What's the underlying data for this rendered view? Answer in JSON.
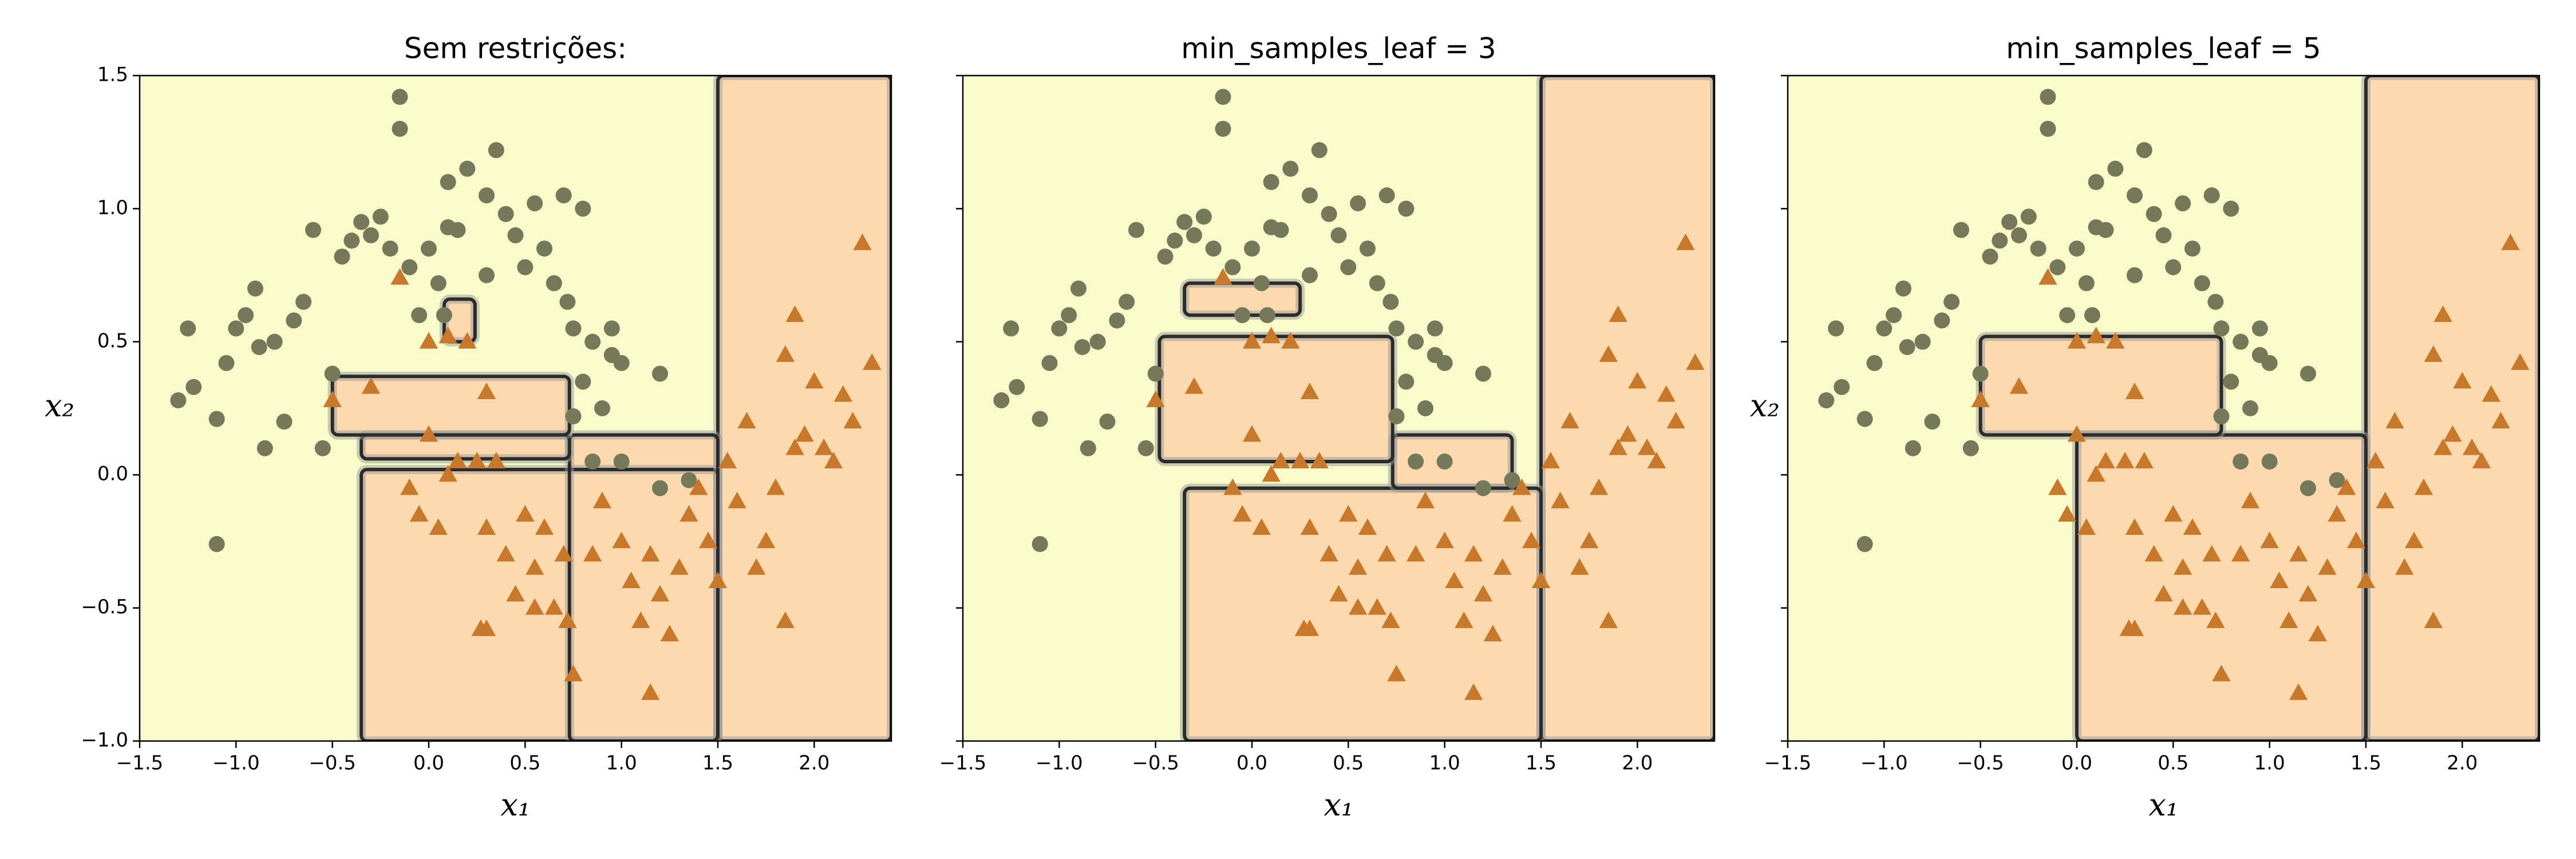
{
  "chart_data": [
    {
      "type": "scatter",
      "title": "Sem restrições:",
      "xlabel": "x₁",
      "ylabel": "x₂",
      "xlim": [
        -1.5,
        2.4
      ],
      "ylim": [
        -1,
        1.5
      ],
      "xticks": [
        {
          "value": -1.5,
          "label": "−1.5"
        },
        {
          "value": -1,
          "label": "−1.0"
        },
        {
          "value": -0.5,
          "label": "−0.5"
        },
        {
          "value": 0,
          "label": "0.0"
        },
        0.5,
        {
          "value": 1,
          "label": "1.0"
        },
        1.5,
        {
          "value": 2,
          "label": "2.0"
        }
      ],
      "yticks": [
        {
          "value": -1,
          "label": "−1.0"
        },
        {
          "value": -0.5,
          "label": "−0.5"
        },
        {
          "value": 0,
          "label": "0.0"
        },
        0.5,
        {
          "value": 1,
          "label": "1.0"
        },
        1.5
      ],
      "show_ytick_labels": true,
      "background_color": "#f9fbcb",
      "region_color": "#fcd9ae",
      "regions": [
        [
          1.5,
          2.4,
          -1,
          1.5
        ],
        [
          -0.35,
          1.5,
          -1,
          0.02
        ],
        [
          0.73,
          1.5,
          -1,
          0.15
        ],
        [
          -0.35,
          0.73,
          0.06,
          0.15
        ],
        [
          -0.5,
          0.73,
          0.15,
          0.37
        ],
        [
          0.08,
          0.24,
          0.5,
          0.66
        ]
      ],
      "series": [
        {
          "marker": "circle",
          "color": "#76785a",
          "x": [
            -1.3,
            -1.25,
            -1.22,
            -1.1,
            -1.1,
            -1.05,
            -1,
            -0.95,
            -0.9,
            -0.88,
            -0.85,
            -0.8,
            -0.75,
            -0.7,
            -0.65,
            -0.6,
            -0.55,
            -0.5,
            -0.45,
            -0.4,
            -0.35,
            -0.3,
            -0.25,
            -0.2,
            -0.15,
            -0.15,
            -0.1,
            -0.05,
            0,
            0.05,
            0.1,
            0.15,
            0.08,
            0.1,
            0.2,
            0.3,
            0.3,
            0.35,
            0.4,
            0.45,
            0.5,
            0.55,
            0.6,
            0.65,
            0.7,
            0.72,
            0.75,
            0.8,
            0.8,
            0.9,
            0.95,
            1,
            0.85,
            1,
            1.2,
            1.35,
            0.75,
            0.85,
            0.95,
            1.2
          ],
          "values": [
            0.28,
            0.55,
            0.33,
            0.21,
            -0.26,
            0.42,
            0.55,
            0.6,
            0.7,
            0.48,
            0.1,
            0.5,
            0.2,
            0.58,
            0.65,
            0.92,
            0.1,
            0.38,
            0.82,
            0.88,
            0.95,
            0.9,
            0.97,
            0.85,
            1.3,
            1.42,
            0.78,
            0.6,
            0.85,
            0.72,
            0.93,
            0.92,
            0.6,
            1.1,
            1.15,
            1.05,
            0.75,
            1.22,
            0.98,
            0.9,
            0.78,
            1.02,
            0.85,
            0.72,
            1.05,
            0.65,
            0.55,
            1,
            0.35,
            0.25,
            0.45,
            0.42,
            0.05,
            0.05,
            -0.05,
            -0.02,
            0.22,
            0.5,
            0.55,
            0.38
          ]
        },
        {
          "marker": "triangle",
          "color": "#c8782a",
          "x": [
            -0.15,
            0,
            0.1,
            0.2,
            0.3,
            -0.5,
            -0.3,
            0,
            0.15,
            -0.1,
            0.1,
            0.25,
            0.35,
            0.3,
            0.4,
            0.45,
            0.5,
            0.55,
            0.6,
            0.65,
            0.7,
            0.72,
            0.75,
            0.85,
            0.9,
            1,
            1.05,
            1.1,
            1.15,
            1.2,
            1.25,
            1.15,
            1.3,
            1.35,
            1.4,
            1.45,
            1.5,
            1.55,
            1.6,
            1.65,
            1.7,
            1.75,
            1.8,
            1.85,
            1.9,
            1.95,
            2,
            2.05,
            1.85,
            1.9,
            2.1,
            2.2,
            2.25,
            2.3,
            2.15,
            0.3,
            0.27,
            0.05,
            -0.05,
            0.55
          ],
          "values": [
            0.74,
            0.5,
            0.52,
            0.5,
            0.31,
            0.28,
            0.33,
            0.15,
            0.05,
            -0.05,
            0,
            0.05,
            0.05,
            -0.2,
            -0.3,
            -0.45,
            -0.15,
            -0.35,
            -0.2,
            -0.5,
            -0.3,
            -0.55,
            -0.75,
            -0.3,
            -0.1,
            -0.25,
            -0.4,
            -0.55,
            -0.3,
            -0.45,
            -0.6,
            -0.82,
            -0.35,
            -0.15,
            -0.05,
            -0.25,
            -0.4,
            0.05,
            -0.1,
            0.2,
            -0.35,
            -0.25,
            -0.05,
            -0.55,
            0.1,
            0.15,
            0.35,
            0.1,
            0.45,
            0.6,
            0.05,
            0.2,
            0.87,
            0.42,
            0.3,
            -0.58,
            -0.58,
            -0.2,
            -0.15,
            -0.5
          ]
        }
      ]
    },
    {
      "type": "scatter",
      "title": "min_samples_leaf = 3",
      "xlabel": "x₁",
      "xlim": [
        -1.5,
        2.4
      ],
      "ylim": [
        -1,
        1.5
      ],
      "xticks": [
        {
          "value": -1.5,
          "label": "−1.5"
        },
        {
          "value": -1,
          "label": "−1.0"
        },
        {
          "value": -0.5,
          "label": "−0.5"
        },
        {
          "value": 0,
          "label": "0.0"
        },
        0.5,
        {
          "value": 1,
          "label": "1.0"
        },
        1.5,
        {
          "value": 2,
          "label": "2.0"
        }
      ],
      "yticks": [
        -1,
        -0.5,
        0,
        0.5,
        1,
        1.5
      ],
      "show_ytick_labels": false,
      "background_color": "#f9fbcb",
      "region_color": "#fcd9ae",
      "regions": [
        [
          1.5,
          2.4,
          -1,
          1.5
        ],
        [
          -0.35,
          1.5,
          -1,
          -0.05
        ],
        [
          0.73,
          1.35,
          -0.05,
          0.15
        ],
        [
          -0.48,
          0.73,
          0.05,
          0.52
        ],
        [
          -0.35,
          0.25,
          0.6,
          0.72
        ]
      ],
      "series": [
        {
          "marker": "circle",
          "color": "#76785a",
          "x": [
            -1.3,
            -1.25,
            -1.22,
            -1.1,
            -1.1,
            -1.05,
            -1,
            -0.95,
            -0.9,
            -0.88,
            -0.85,
            -0.8,
            -0.75,
            -0.7,
            -0.65,
            -0.6,
            -0.55,
            -0.5,
            -0.45,
            -0.4,
            -0.35,
            -0.3,
            -0.25,
            -0.2,
            -0.15,
            -0.15,
            -0.1,
            -0.05,
            0,
            0.05,
            0.1,
            0.15,
            0.08,
            0.1,
            0.2,
            0.3,
            0.3,
            0.35,
            0.4,
            0.45,
            0.5,
            0.55,
            0.6,
            0.65,
            0.7,
            0.72,
            0.75,
            0.8,
            0.8,
            0.9,
            0.95,
            1,
            0.85,
            1,
            1.2,
            1.35,
            0.75,
            0.85,
            0.95,
            1.2
          ],
          "values": [
            0.28,
            0.55,
            0.33,
            0.21,
            -0.26,
            0.42,
            0.55,
            0.6,
            0.7,
            0.48,
            0.1,
            0.5,
            0.2,
            0.58,
            0.65,
            0.92,
            0.1,
            0.38,
            0.82,
            0.88,
            0.95,
            0.9,
            0.97,
            0.85,
            1.3,
            1.42,
            0.78,
            0.6,
            0.85,
            0.72,
            0.93,
            0.92,
            0.6,
            1.1,
            1.15,
            1.05,
            0.75,
            1.22,
            0.98,
            0.9,
            0.78,
            1.02,
            0.85,
            0.72,
            1.05,
            0.65,
            0.55,
            1,
            0.35,
            0.25,
            0.45,
            0.42,
            0.05,
            0.05,
            -0.05,
            -0.02,
            0.22,
            0.5,
            0.55,
            0.38
          ]
        },
        {
          "marker": "triangle",
          "color": "#c8782a",
          "x": [
            -0.15,
            0,
            0.1,
            0.2,
            0.3,
            -0.5,
            -0.3,
            0,
            0.15,
            -0.1,
            0.1,
            0.25,
            0.35,
            0.3,
            0.4,
            0.45,
            0.5,
            0.55,
            0.6,
            0.65,
            0.7,
            0.72,
            0.75,
            0.85,
            0.9,
            1,
            1.05,
            1.1,
            1.15,
            1.2,
            1.25,
            1.15,
            1.3,
            1.35,
            1.4,
            1.45,
            1.5,
            1.55,
            1.6,
            1.65,
            1.7,
            1.75,
            1.8,
            1.85,
            1.9,
            1.95,
            2,
            2.05,
            1.85,
            1.9,
            2.1,
            2.2,
            2.25,
            2.3,
            2.15,
            0.3,
            0.27,
            0.05,
            -0.05,
            0.55
          ],
          "values": [
            0.74,
            0.5,
            0.52,
            0.5,
            0.31,
            0.28,
            0.33,
            0.15,
            0.05,
            -0.05,
            0,
            0.05,
            0.05,
            -0.2,
            -0.3,
            -0.45,
            -0.15,
            -0.35,
            -0.2,
            -0.5,
            -0.3,
            -0.55,
            -0.75,
            -0.3,
            -0.1,
            -0.25,
            -0.4,
            -0.55,
            -0.3,
            -0.45,
            -0.6,
            -0.82,
            -0.35,
            -0.15,
            -0.05,
            -0.25,
            -0.4,
            0.05,
            -0.1,
            0.2,
            -0.35,
            -0.25,
            -0.05,
            -0.55,
            0.1,
            0.15,
            0.35,
            0.1,
            0.45,
            0.6,
            0.05,
            0.2,
            0.87,
            0.42,
            0.3,
            -0.58,
            -0.58,
            -0.2,
            -0.15,
            -0.5
          ]
        }
      ]
    },
    {
      "type": "scatter",
      "title": "min_samples_leaf = 5",
      "xlabel": "x₁",
      "ylabel": "x₂",
      "xlim": [
        -1.5,
        2.4
      ],
      "ylim": [
        -1,
        1.5
      ],
      "xticks": [
        {
          "value": -1.5,
          "label": "−1.5"
        },
        {
          "value": -1,
          "label": "−1.0"
        },
        {
          "value": -0.5,
          "label": "−0.5"
        },
        {
          "value": 0,
          "label": "0.0"
        },
        0.5,
        {
          "value": 1,
          "label": "1.0"
        },
        1.5,
        {
          "value": 2,
          "label": "2.0"
        }
      ],
      "yticks": [
        -1,
        -0.5,
        0,
        0.5,
        1,
        1.5
      ],
      "show_ytick_labels": false,
      "background_color": "#f9fbcb",
      "region_color": "#fcd9ae",
      "regions": [
        [
          1.5,
          2.4,
          -1,
          1.5
        ],
        [
          0,
          1.5,
          -1,
          0.15
        ],
        [
          -0.5,
          0.75,
          0.15,
          0.52
        ]
      ],
      "series": [
        {
          "marker": "circle",
          "color": "#76785a",
          "x": [
            -1.3,
            -1.25,
            -1.22,
            -1.1,
            -1.1,
            -1.05,
            -1,
            -0.95,
            -0.9,
            -0.88,
            -0.85,
            -0.8,
            -0.75,
            -0.7,
            -0.65,
            -0.6,
            -0.55,
            -0.5,
            -0.45,
            -0.4,
            -0.35,
            -0.3,
            -0.25,
            -0.2,
            -0.15,
            -0.15,
            -0.1,
            -0.05,
            0,
            0.05,
            0.1,
            0.15,
            0.08,
            0.1,
            0.2,
            0.3,
            0.3,
            0.35,
            0.4,
            0.45,
            0.5,
            0.55,
            0.6,
            0.65,
            0.7,
            0.72,
            0.75,
            0.8,
            0.8,
            0.9,
            0.95,
            1,
            0.85,
            1,
            1.2,
            1.35,
            0.75,
            0.85,
            0.95,
            1.2
          ],
          "values": [
            0.28,
            0.55,
            0.33,
            0.21,
            -0.26,
            0.42,
            0.55,
            0.6,
            0.7,
            0.48,
            0.1,
            0.5,
            0.2,
            0.58,
            0.65,
            0.92,
            0.1,
            0.38,
            0.82,
            0.88,
            0.95,
            0.9,
            0.97,
            0.85,
            1.3,
            1.42,
            0.78,
            0.6,
            0.85,
            0.72,
            0.93,
            0.92,
            0.6,
            1.1,
            1.15,
            1.05,
            0.75,
            1.22,
            0.98,
            0.9,
            0.78,
            1.02,
            0.85,
            0.72,
            1.05,
            0.65,
            0.55,
            1,
            0.35,
            0.25,
            0.45,
            0.42,
            0.05,
            0.05,
            -0.05,
            -0.02,
            0.22,
            0.5,
            0.55,
            0.38
          ]
        },
        {
          "marker": "triangle",
          "color": "#c8782a",
          "x": [
            -0.15,
            0,
            0.1,
            0.2,
            0.3,
            -0.5,
            -0.3,
            0,
            0.15,
            -0.1,
            0.1,
            0.25,
            0.35,
            0.3,
            0.4,
            0.45,
            0.5,
            0.55,
            0.6,
            0.65,
            0.7,
            0.72,
            0.75,
            0.85,
            0.9,
            1,
            1.05,
            1.1,
            1.15,
            1.2,
            1.25,
            1.15,
            1.3,
            1.35,
            1.4,
            1.45,
            1.5,
            1.55,
            1.6,
            1.65,
            1.7,
            1.75,
            1.8,
            1.85,
            1.9,
            1.95,
            2,
            2.05,
            1.85,
            1.9,
            2.1,
            2.2,
            2.25,
            2.3,
            2.15,
            0.3,
            0.27,
            0.05,
            -0.05,
            0.55
          ],
          "values": [
            0.74,
            0.5,
            0.52,
            0.5,
            0.31,
            0.28,
            0.33,
            0.15,
            0.05,
            -0.05,
            0,
            0.05,
            0.05,
            -0.2,
            -0.3,
            -0.45,
            -0.15,
            -0.35,
            -0.2,
            -0.5,
            -0.3,
            -0.55,
            -0.75,
            -0.3,
            -0.1,
            -0.25,
            -0.4,
            -0.55,
            -0.3,
            -0.45,
            -0.6,
            -0.82,
            -0.35,
            -0.15,
            -0.05,
            -0.25,
            -0.4,
            0.05,
            -0.1,
            0.2,
            -0.35,
            -0.25,
            -0.05,
            -0.55,
            0.1,
            0.15,
            0.35,
            0.1,
            0.45,
            0.6,
            0.05,
            0.2,
            0.87,
            0.42,
            0.3,
            -0.58,
            -0.58,
            -0.2,
            -0.15,
            -0.5
          ]
        }
      ]
    }
  ]
}
